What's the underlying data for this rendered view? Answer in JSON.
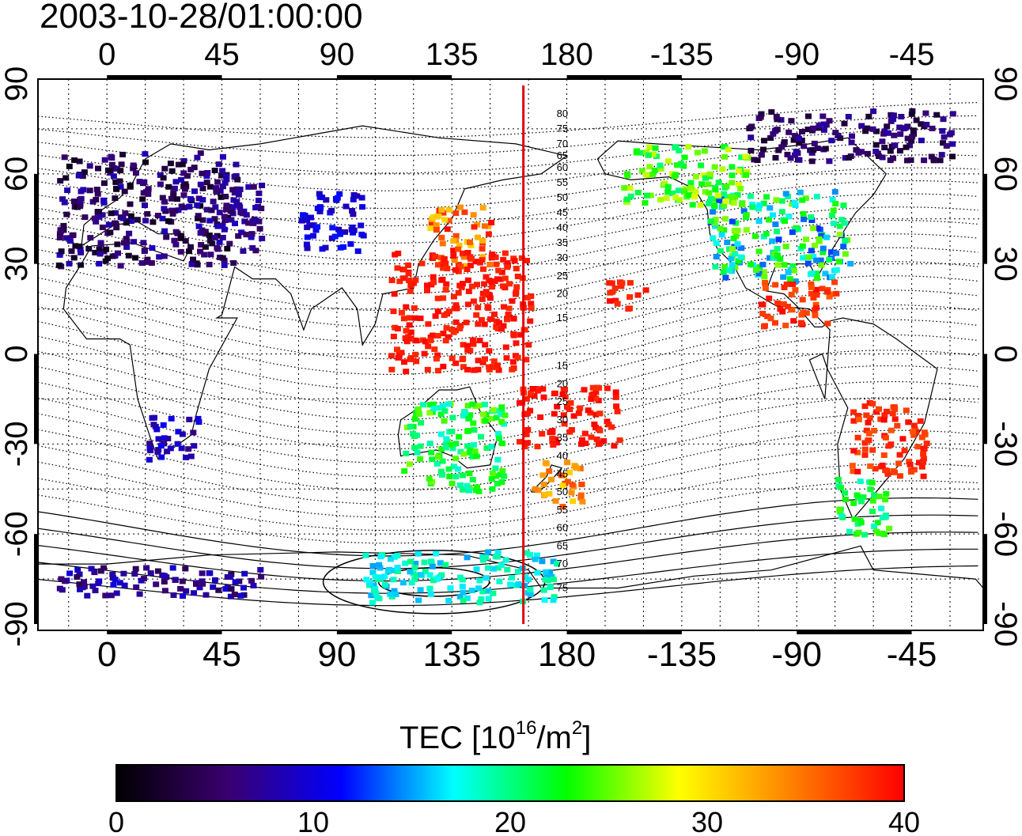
{
  "title": "2003-10-28/01:00:00",
  "x_ticks": [
    "0",
    "45",
    "90",
    "135",
    "180",
    "-135",
    "-90",
    "-45"
  ],
  "x_tick_lons": [
    0,
    45,
    90,
    135,
    180,
    225,
    270,
    315
  ],
  "y_ticks": [
    "90",
    "60",
    "30",
    "0",
    "-30",
    "-60",
    "-90"
  ],
  "y_tick_lats": [
    90,
    60,
    30,
    0,
    -30,
    -60,
    -90
  ],
  "colorbar": {
    "label_prefix": "TEC  [10",
    "label_exp": "16",
    "label_mid": "/m",
    "label_exp2": "2",
    "label_suffix": "]",
    "ticks": [
      "0",
      "10",
      "20",
      "30",
      "40"
    ],
    "min": 0,
    "max": 40,
    "colors": [
      "#000000",
      "#3a0070",
      "#0000ff",
      "#00ffff",
      "#00ff00",
      "#ffff00",
      "#ff8000",
      "#ff0000"
    ]
  },
  "terminator_line": {
    "color": "#e00000",
    "lon": 163
  },
  "contour_labels": [
    {
      "text": "80",
      "lat": 80
    },
    {
      "text": "75",
      "lat": 75
    },
    {
      "text": "70",
      "lat": 70
    },
    {
      "text": "65",
      "lat": 66
    },
    {
      "text": "60",
      "lat": 62
    },
    {
      "text": "55",
      "lat": 57
    },
    {
      "text": "50",
      "lat": 52
    },
    {
      "text": "45",
      "lat": 47
    },
    {
      "text": "40",
      "lat": 42
    },
    {
      "text": "35",
      "lat": 37
    },
    {
      "text": "30",
      "lat": 32
    },
    {
      "text": "25",
      "lat": 26
    },
    {
      "text": "20",
      "lat": 20
    },
    {
      "text": "15",
      "lat": 12
    },
    {
      "text": "15",
      "lat": -4
    },
    {
      "text": "20",
      "lat": -10
    },
    {
      "text": "25",
      "lat": -16
    },
    {
      "text": "30",
      "lat": -22
    },
    {
      "text": "35",
      "lat": -28
    },
    {
      "text": "40",
      "lat": -34
    },
    {
      "text": "45",
      "lat": -40
    },
    {
      "text": "50",
      "lat": -46
    },
    {
      "text": "55",
      "lat": -52
    },
    {
      "text": "60",
      "lat": -58
    },
    {
      "text": "65",
      "lat": -64
    },
    {
      "text": "70",
      "lat": -70
    },
    {
      "text": "75",
      "lat": -78
    }
  ],
  "tec_regions": [
    {
      "name": "europe",
      "lon": [
        -20,
        50
      ],
      "lat": [
        30,
        68
      ],
      "tec": [
        1,
        9
      ]
    },
    {
      "name": "eastern-europe",
      "lon": [
        40,
        60
      ],
      "lat": [
        35,
        58
      ],
      "tec": [
        5,
        9
      ]
    },
    {
      "name": "central-asia",
      "lon": [
        75,
        100
      ],
      "lat": [
        35,
        55
      ],
      "tec": [
        8,
        12
      ]
    },
    {
      "name": "japan",
      "lon": [
        125,
        150
      ],
      "lat": [
        30,
        50
      ],
      "tec": [
        30,
        40
      ]
    },
    {
      "name": "south-china-pacific",
      "lon": [
        110,
        165
      ],
      "lat": [
        -5,
        35
      ],
      "tec": [
        38,
        40
      ]
    },
    {
      "name": "south-pacific",
      "lon": [
        160,
        200
      ],
      "lat": [
        -30,
        -10
      ],
      "tec": [
        38,
        40
      ]
    },
    {
      "name": "new-zealand",
      "lon": [
        165,
        185
      ],
      "lat": [
        -50,
        -35
      ],
      "tec": [
        30,
        37
      ]
    },
    {
      "name": "australia",
      "lon": [
        115,
        155
      ],
      "lat": [
        -45,
        -15
      ],
      "tec": [
        18,
        26
      ]
    },
    {
      "name": "north-america",
      "lon": [
        235,
        290
      ],
      "lat": [
        25,
        55
      ],
      "tec": [
        12,
        26
      ]
    },
    {
      "name": "alaska-canada",
      "lon": [
        200,
        250
      ],
      "lat": [
        50,
        70
      ],
      "tec": [
        20,
        28
      ]
    },
    {
      "name": "arctic-canada",
      "lon": [
        250,
        330
      ],
      "lat": [
        65,
        82
      ],
      "tec": [
        2,
        8
      ]
    },
    {
      "name": "central-america",
      "lon": [
        255,
        285
      ],
      "lat": [
        10,
        25
      ],
      "tec": [
        36,
        40
      ]
    },
    {
      "name": "south-america",
      "lon": [
        290,
        320
      ],
      "lat": [
        -40,
        -15
      ],
      "tec": [
        36,
        40
      ]
    },
    {
      "name": "patagonia",
      "lon": [
        285,
        305
      ],
      "lat": [
        -60,
        -40
      ],
      "tec": [
        18,
        25
      ]
    },
    {
      "name": "south-africa",
      "lon": [
        15,
        35
      ],
      "lat": [
        -35,
        -20
      ],
      "tec": [
        6,
        11
      ]
    },
    {
      "name": "antarctica-west",
      "lon": [
        -20,
        60
      ],
      "lat": [
        -80,
        -70
      ],
      "tec": [
        4,
        10
      ]
    },
    {
      "name": "antarctica-east",
      "lon": [
        100,
        175
      ],
      "lat": [
        -82,
        -65
      ],
      "tec": [
        15,
        20
      ]
    },
    {
      "name": "hawaii",
      "lon": [
        195,
        210
      ],
      "lat": [
        15,
        25
      ],
      "tec": [
        38,
        40
      ]
    }
  ]
}
